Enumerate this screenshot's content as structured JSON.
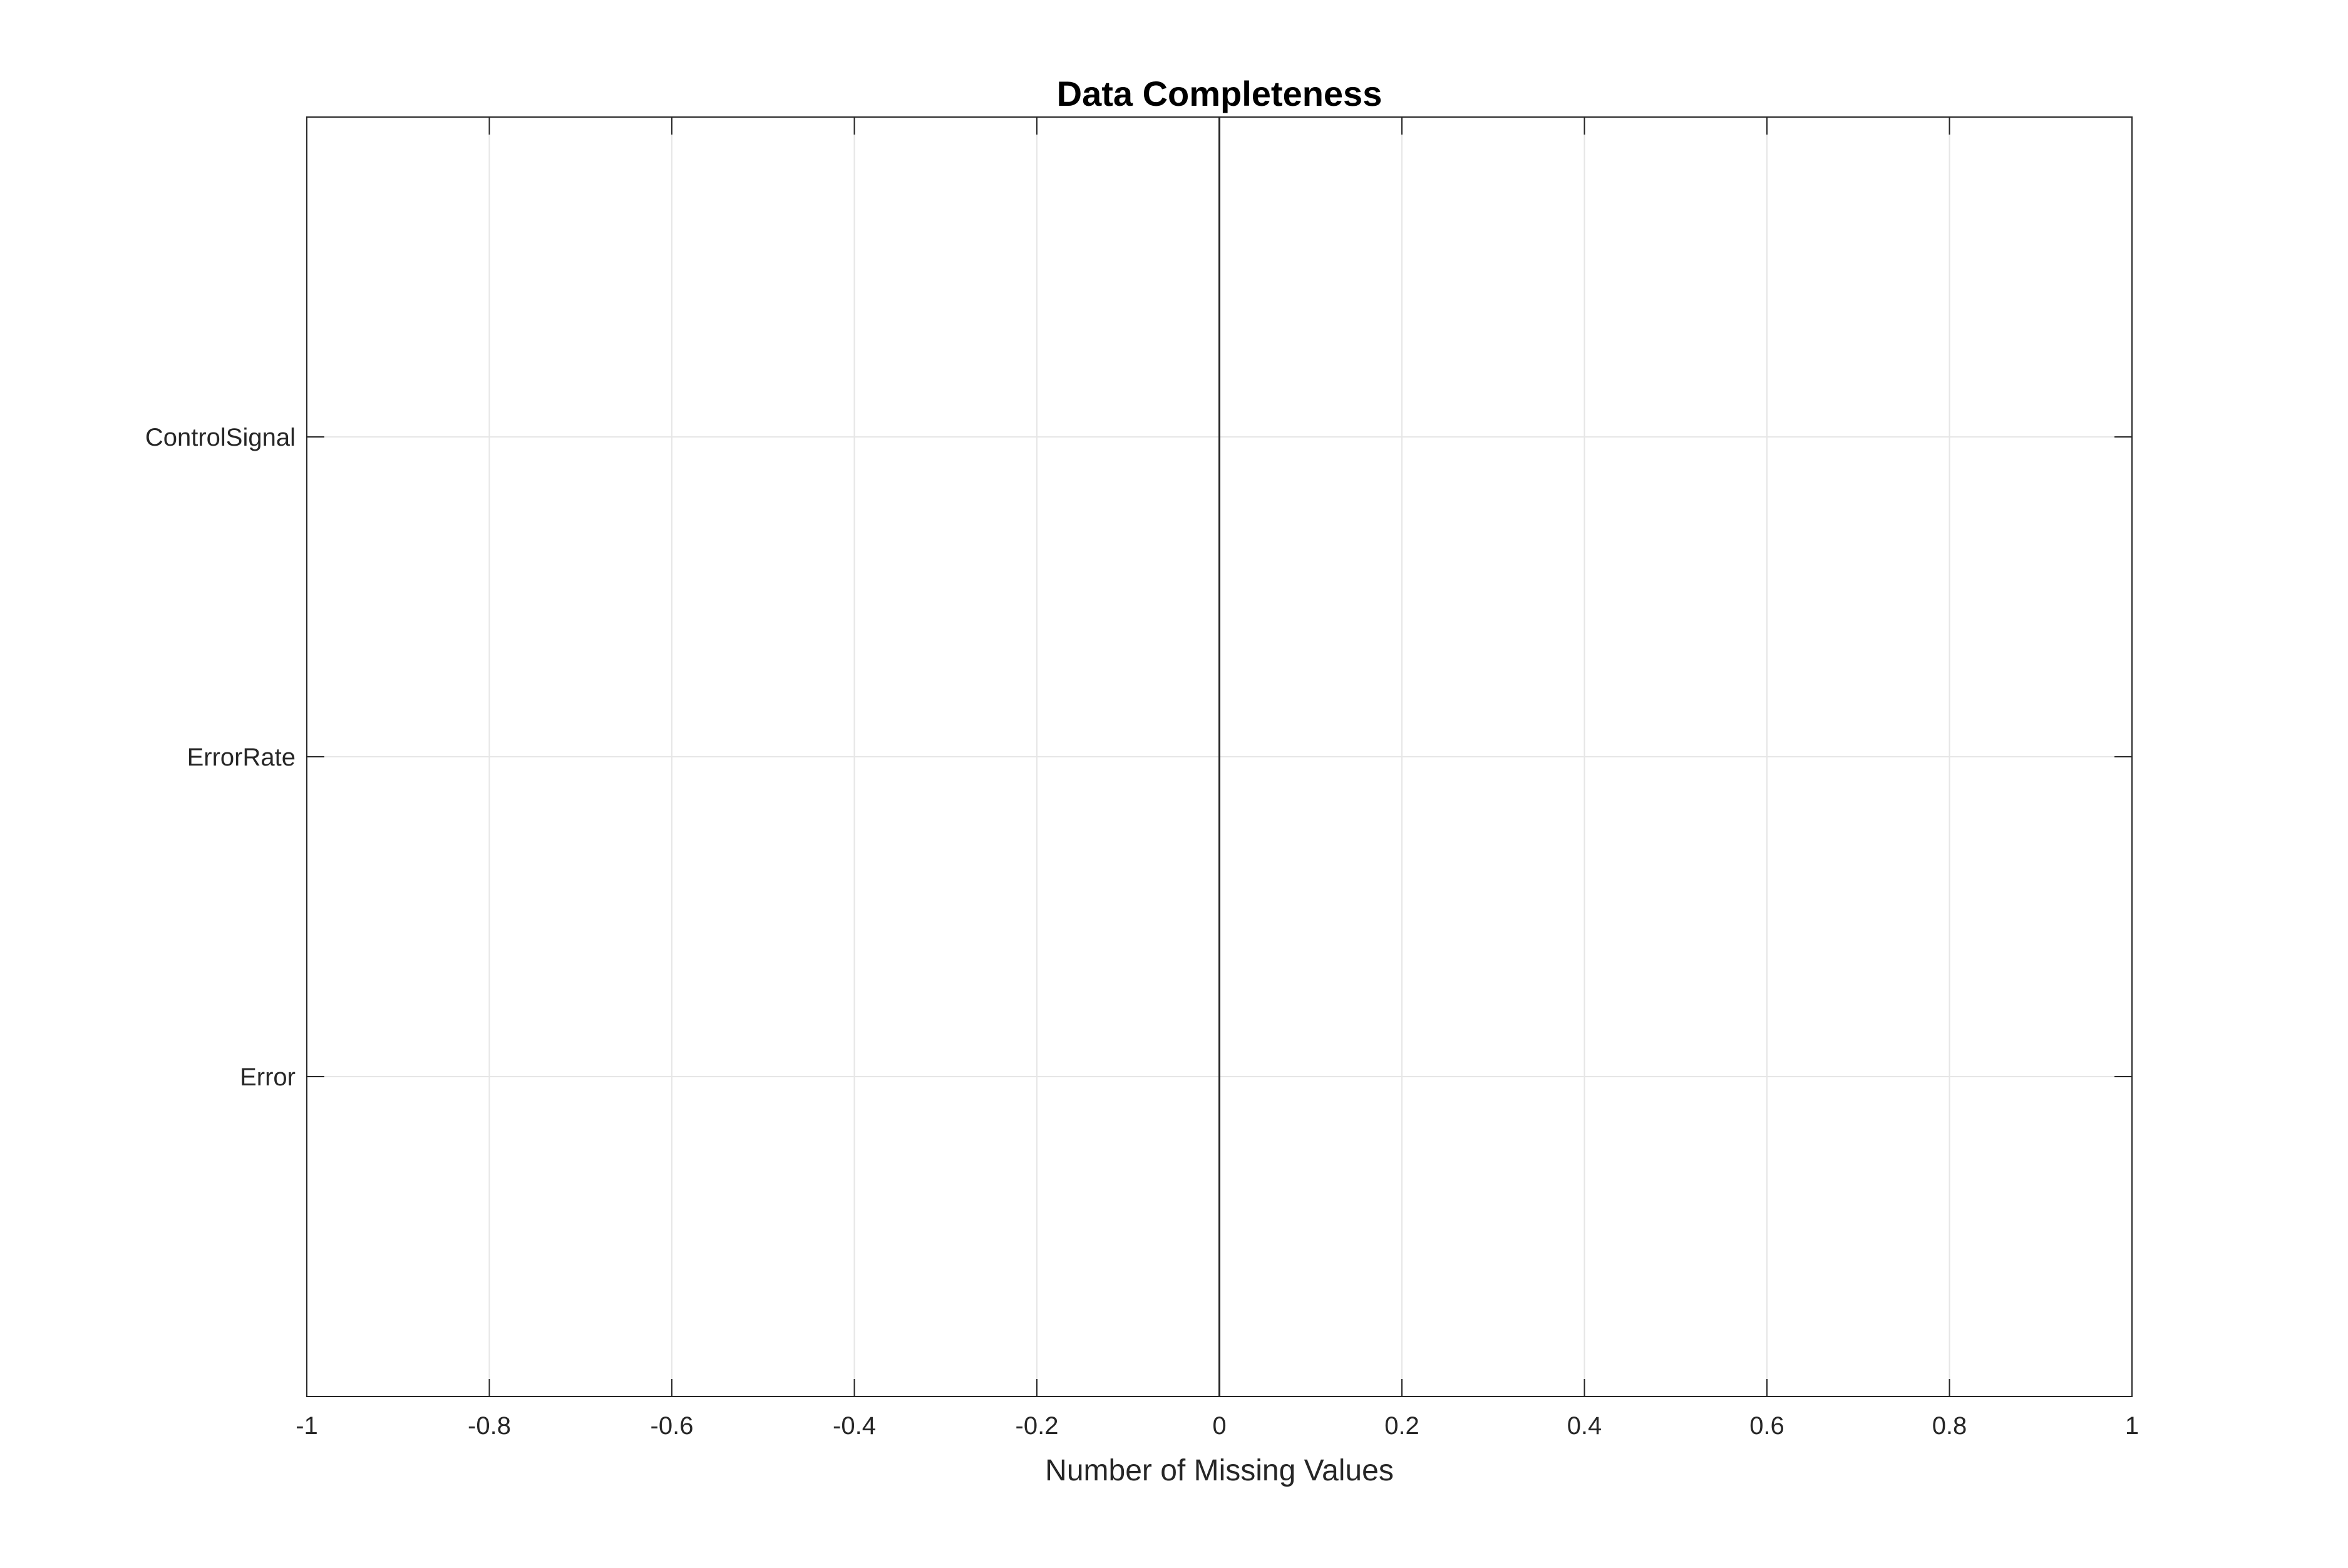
{
  "chart_data": {
    "type": "bar",
    "orientation": "horizontal",
    "title": "Data Completeness",
    "xlabel": "Number of Missing Values",
    "ylabel": "",
    "categories": [
      "Error",
      "ErrorRate",
      "ControlSignal"
    ],
    "values": [
      0,
      0,
      0
    ],
    "xlim": [
      -1,
      1
    ],
    "xticks": [
      "-1",
      "-0.8",
      "-0.6",
      "-0.4",
      "-0.2",
      "0",
      "0.2",
      "0.4",
      "0.6",
      "0.8",
      "1"
    ],
    "grid": true,
    "legend": "none"
  },
  "colors": {
    "background": "#ffffff",
    "axis": "#262626",
    "grid": "#e6e6e6",
    "bar_edge": "#000000",
    "text": "#262626"
  }
}
